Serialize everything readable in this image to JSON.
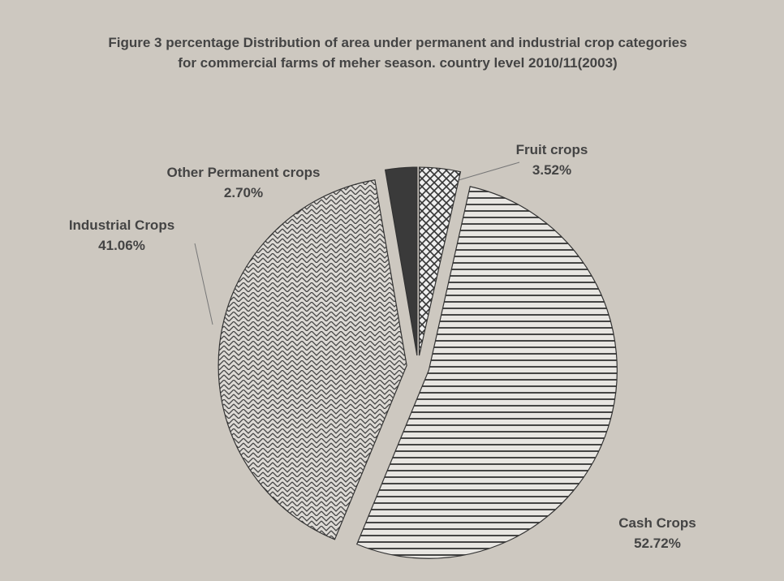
{
  "chart_data": {
    "type": "pie",
    "title": "Figure 3 percentage Distribution of area under permanent and industrial crop categories for commercial farms of meher season. country level 2010/11(2003)",
    "categories": [
      "Fruit crops",
      "Cash Crops",
      "Industrial Crops",
      "Other Permanent crops"
    ],
    "values": [
      3.52,
      52.72,
      41.06,
      2.7
    ],
    "value_labels": [
      "3.52%",
      "52.72%",
      "41.06%",
      "2.70%"
    ]
  }
}
